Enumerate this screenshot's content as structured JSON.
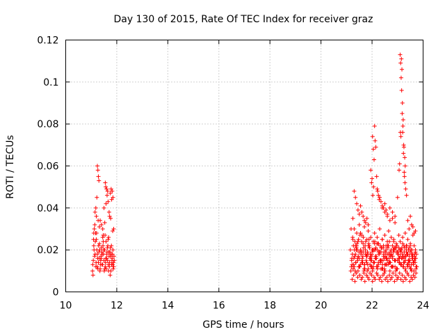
{
  "chart_data": {
    "type": "scatter",
    "title": "Day 130 of 2015, Rate Of TEC Index for receiver graz",
    "xlabel": "GPS time / hours",
    "ylabel": "ROTI / TECUs",
    "xlim": [
      10,
      24
    ],
    "ylim": [
      0,
      0.12
    ],
    "xticks": [
      10,
      12,
      14,
      16,
      18,
      20,
      22,
      24
    ],
    "yticks": [
      0,
      0.02,
      0.04,
      0.06,
      0.08,
      0.1,
      0.12
    ],
    "ytick_labels": [
      "0",
      "0.02",
      "0.04",
      "0.06",
      "0.08",
      "0.1",
      "0.12"
    ],
    "grid": true,
    "marker": "+",
    "color": "#ff0000",
    "series": [
      {
        "name": "ROTI",
        "x": [
          11.05,
          11.08,
          11.1,
          11.12,
          11.15,
          11.18,
          11.2,
          11.22,
          11.25,
          11.28,
          11.3,
          11.32,
          11.35,
          11.38,
          11.4,
          11.42,
          11.45,
          11.48,
          11.5,
          11.52,
          11.55,
          11.58,
          11.6,
          11.62,
          11.65,
          11.68,
          11.7,
          11.72,
          11.75,
          11.78,
          11.8,
          11.82,
          11.85,
          11.88,
          11.9,
          11.07,
          11.11,
          11.16,
          11.21,
          11.26,
          11.31,
          11.36,
          11.41,
          11.46,
          11.51,
          11.56,
          11.61,
          11.66,
          11.71,
          11.76,
          11.81,
          11.86,
          11.09,
          11.14,
          11.19,
          11.24,
          11.29,
          11.34,
          11.39,
          11.44,
          11.49,
          11.54,
          11.59,
          11.64,
          11.69,
          11.74,
          11.79,
          11.84,
          11.89,
          11.13,
          11.17,
          11.23,
          11.27,
          11.33,
          11.37,
          11.43,
          11.47,
          11.53,
          11.57,
          11.63,
          11.67,
          11.73,
          11.77,
          11.83,
          11.87,
          11.06,
          11.24,
          11.26,
          11.28,
          11.3,
          11.22,
          11.55,
          11.57,
          11.6,
          11.62,
          11.64,
          11.75,
          11.78,
          11.8,
          11.82,
          11.85,
          11.5,
          11.15,
          11.18,
          11.2,
          11.35,
          11.4,
          11.45,
          11.7,
          11.72,
          11.88,
          11.58,
          11.66,
          11.1,
          11.32,
          11.47,
          11.53,
          11.68,
          11.76,
          11.84,
          21.15,
          21.2,
          21.25,
          21.3,
          21.35,
          21.4,
          21.45,
          21.5,
          21.55,
          21.6,
          21.65,
          21.7,
          21.75,
          21.8,
          21.85,
          21.9,
          21.95,
          22.0,
          22.05,
          22.1,
          22.15,
          22.2,
          22.25,
          22.3,
          22.35,
          22.4,
          22.45,
          22.5,
          22.55,
          22.6,
          22.65,
          22.7,
          22.75,
          22.8,
          22.85,
          22.9,
          22.95,
          23.0,
          23.05,
          23.1,
          23.15,
          23.2,
          23.25,
          23.3,
          23.35,
          23.4,
          23.45,
          23.5,
          23.55,
          23.6,
          23.65,
          23.7,
          23.75,
          21.17,
          21.22,
          21.27,
          21.32,
          21.37,
          21.42,
          21.47,
          21.52,
          21.57,
          21.62,
          21.67,
          21.72,
          21.77,
          21.82,
          21.87,
          21.92,
          21.97,
          22.02,
          22.07,
          22.12,
          22.17,
          22.22,
          22.27,
          22.32,
          22.37,
          22.42,
          22.47,
          22.52,
          22.57,
          22.62,
          22.67,
          22.72,
          22.77,
          22.82,
          22.87,
          22.92,
          22.97,
          23.02,
          23.07,
          23.12,
          23.17,
          23.22,
          23.27,
          23.32,
          23.37,
          23.42,
          23.47,
          23.52,
          23.57,
          23.62,
          23.67,
          23.72,
          21.18,
          21.23,
          21.28,
          21.33,
          21.38,
          21.43,
          21.48,
          21.53,
          21.58,
          21.63,
          21.68,
          21.73,
          21.78,
          21.83,
          21.88,
          21.93,
          21.98,
          22.03,
          22.08,
          22.13,
          22.18,
          22.23,
          22.28,
          22.33,
          22.38,
          22.43,
          22.48,
          22.53,
          22.58,
          22.63,
          22.68,
          22.73,
          22.78,
          22.83,
          22.88,
          22.93,
          22.98,
          23.03,
          23.08,
          23.13,
          23.18,
          23.23,
          23.28,
          23.33,
          23.38,
          23.43,
          23.48,
          23.53,
          23.58,
          23.63,
          23.68,
          23.73,
          21.21,
          21.26,
          21.31,
          21.36,
          21.41,
          21.46,
          21.51,
          21.56,
          21.61,
          21.66,
          21.71,
          21.76,
          21.81,
          21.86,
          21.91,
          21.96,
          22.01,
          22.06,
          22.11,
          22.16,
          22.21,
          22.26,
          22.31,
          22.36,
          22.41,
          22.46,
          22.51,
          22.56,
          22.61,
          22.66,
          22.71,
          22.76,
          22.81,
          22.86,
          22.91,
          22.96,
          23.01,
          23.06,
          23.11,
          23.16,
          23.21,
          23.26,
          23.31,
          23.36,
          23.41,
          23.46,
          23.51,
          23.56,
          23.61,
          23.66,
          23.71,
          21.19,
          21.24,
          21.29,
          21.34,
          21.39,
          21.44,
          21.49,
          21.54,
          21.59,
          21.64,
          21.69,
          21.74,
          21.79,
          21.84,
          21.89,
          21.94,
          21.99,
          22.04,
          22.09,
          22.14,
          22.19,
          22.24,
          22.29,
          22.34,
          22.39,
          22.44,
          22.49,
          22.54,
          22.59,
          22.64,
          22.69,
          22.74,
          22.79,
          22.84,
          22.89,
          22.94,
          22.99,
          23.04,
          23.09,
          23.14,
          23.19,
          23.24,
          23.29,
          23.34,
          23.39,
          23.44,
          23.49,
          23.54,
          23.59,
          23.64,
          23.69,
          23.74,
          21.25,
          21.3,
          21.35,
          21.4,
          21.45,
          21.5,
          21.55,
          21.6,
          21.65,
          21.7,
          21.75,
          21.8,
          21.85,
          21.9,
          21.95,
          22.0,
          22.05,
          22.1,
          22.15,
          22.2,
          22.25,
          22.3,
          22.35,
          22.4,
          22.45,
          22.5,
          22.55,
          22.6,
          22.65,
          22.7,
          22.75,
          22.8,
          22.85,
          22.9,
          22.95,
          23.0,
          23.05,
          23.1,
          23.15,
          23.2,
          23.25,
          23.3,
          23.35,
          23.4,
          23.45,
          23.5,
          23.55,
          23.6,
          23.65,
          23.7,
          21.22,
          21.28,
          21.33,
          21.38,
          21.44,
          21.52,
          21.58,
          21.62,
          21.68,
          21.72,
          21.78,
          21.83,
          21.88,
          21.92,
          21.98,
          22.02,
          22.08,
          22.12,
          22.18,
          22.22,
          22.28,
          22.33,
          22.38,
          22.43,
          22.48,
          22.52,
          22.58,
          22.62,
          22.68,
          22.73,
          22.78,
          22.82,
          22.88,
          22.93,
          22.98,
          23.02,
          23.08,
          23.13,
          23.18,
          23.22,
          23.28,
          23.33,
          23.38,
          23.42,
          23.48,
          23.53,
          23.58,
          23.62,
          23.68,
          23.72,
          22.1,
          22.12,
          22.15,
          22.02,
          22.05,
          22.08,
          21.95,
          22.0,
          22.06,
          22.03,
          21.98,
          22.18,
          22.2,
          22.22,
          22.25,
          22.28,
          22.3,
          22.35,
          22.4,
          22.45,
          22.5,
          22.55,
          22.6,
          22.7,
          22.8,
          22.9,
          23.0,
          23.1,
          23.12,
          23.14,
          23.16,
          23.18,
          23.2,
          23.22,
          23.24,
          23.15,
          23.17,
          23.19,
          23.21,
          23.23,
          23.25,
          23.28,
          23.3,
          23.08,
          23.06,
          23.26,
          23.13,
          23.11,
          23.27,
          23.29,
          23.32,
          23.35,
          21.3,
          21.35,
          21.4,
          21.45,
          21.5,
          21.55,
          21.6,
          21.65,
          21.7,
          21.75,
          21.8,
          21.85,
          22.4,
          22.5,
          22.6,
          22.7,
          22.8,
          22.9,
          23.4,
          23.5,
          23.6,
          23.7,
          23.45,
          23.55,
          23.65
        ],
        "y": [
          0.01,
          0.015,
          0.022,
          0.03,
          0.018,
          0.012,
          0.025,
          0.02,
          0.016,
          0.014,
          0.019,
          0.023,
          0.011,
          0.017,
          0.021,
          0.013,
          0.026,
          0.018,
          0.015,
          0.02,
          0.012,
          0.024,
          0.016,
          0.019,
          0.022,
          0.01,
          0.017,
          0.014,
          0.021,
          0.018,
          0.013,
          0.016,
          0.02,
          0.012,
          0.015,
          0.008,
          0.02,
          0.024,
          0.028,
          0.011,
          0.016,
          0.013,
          0.019,
          0.022,
          0.01,
          0.014,
          0.018,
          0.025,
          0.012,
          0.017,
          0.015,
          0.011,
          0.025,
          0.032,
          0.014,
          0.018,
          0.022,
          0.01,
          0.016,
          0.013,
          0.02,
          0.027,
          0.011,
          0.015,
          0.019,
          0.008,
          0.022,
          0.013,
          0.017,
          0.017,
          0.028,
          0.012,
          0.034,
          0.02,
          0.015,
          0.018,
          0.024,
          0.011,
          0.016,
          0.021,
          0.013,
          0.019,
          0.01,
          0.018,
          0.014,
          0.013,
          0.06,
          0.058,
          0.055,
          0.053,
          0.045,
          0.052,
          0.05,
          0.049,
          0.046,
          0.048,
          0.047,
          0.049,
          0.044,
          0.048,
          0.045,
          0.04,
          0.038,
          0.04,
          0.036,
          0.034,
          0.032,
          0.03,
          0.038,
          0.036,
          0.03,
          0.042,
          0.043,
          0.028,
          0.031,
          0.027,
          0.033,
          0.026,
          0.035,
          0.029,
          0.02,
          0.015,
          0.025,
          0.012,
          0.018,
          0.022,
          0.01,
          0.016,
          0.028,
          0.014,
          0.019,
          0.013,
          0.024,
          0.017,
          0.011,
          0.021,
          0.015,
          0.018,
          0.012,
          0.023,
          0.016,
          0.02,
          0.014,
          0.019,
          0.011,
          0.025,
          0.017,
          0.013,
          0.022,
          0.015,
          0.018,
          0.01,
          0.02,
          0.016,
          0.024,
          0.012,
          0.019,
          0.015,
          0.021,
          0.017,
          0.013,
          0.023,
          0.016,
          0.011,
          0.02,
          0.018,
          0.014,
          0.022,
          0.01,
          0.017,
          0.015,
          0.019,
          0.012,
          0.01,
          0.013,
          0.022,
          0.017,
          0.014,
          0.02,
          0.025,
          0.012,
          0.018,
          0.016,
          0.021,
          0.011,
          0.015,
          0.019,
          0.023,
          0.013,
          0.017,
          0.01,
          0.014,
          0.02,
          0.016,
          0.012,
          0.018,
          0.022,
          0.015,
          0.011,
          0.019,
          0.017,
          0.013,
          0.021,
          0.016,
          0.014,
          0.018,
          0.012,
          0.02,
          0.015,
          0.011,
          0.019,
          0.016,
          0.013,
          0.021,
          0.017,
          0.014,
          0.01,
          0.018,
          0.015,
          0.012,
          0.02,
          0.016,
          0.013,
          0.017,
          0.011,
          0.03,
          0.018,
          0.013,
          0.024,
          0.02,
          0.016,
          0.012,
          0.027,
          0.019,
          0.014,
          0.01,
          0.022,
          0.017,
          0.013,
          0.025,
          0.018,
          0.015,
          0.011,
          0.02,
          0.016,
          0.012,
          0.023,
          0.018,
          0.014,
          0.021,
          0.015,
          0.011,
          0.019,
          0.016,
          0.013,
          0.024,
          0.017,
          0.012,
          0.02,
          0.015,
          0.01,
          0.022,
          0.018,
          0.014,
          0.019,
          0.016,
          0.012,
          0.021,
          0.017,
          0.013,
          0.02,
          0.015,
          0.011,
          0.018,
          0.014,
          0.016,
          0.012,
          0.016,
          0.011,
          0.02,
          0.014,
          0.023,
          0.017,
          0.012,
          0.019,
          0.015,
          0.026,
          0.013,
          0.018,
          0.01,
          0.022,
          0.016,
          0.012,
          0.02,
          0.014,
          0.024,
          0.017,
          0.011,
          0.019,
          0.015,
          0.021,
          0.013,
          0.018,
          0.01,
          0.016,
          0.022,
          0.014,
          0.019,
          0.012,
          0.017,
          0.021,
          0.015,
          0.011,
          0.018,
          0.014,
          0.02,
          0.016,
          0.012,
          0.019,
          0.015,
          0.022,
          0.013,
          0.017,
          0.011,
          0.02,
          0.014,
          0.018,
          0.016,
          0.012,
          0.026,
          0.016,
          0.01,
          0.021,
          0.015,
          0.019,
          0.013,
          0.024,
          0.017,
          0.011,
          0.02,
          0.014,
          0.018,
          0.022,
          0.016,
          0.012,
          0.02,
          0.014,
          0.017,
          0.023,
          0.013,
          0.019,
          0.015,
          0.011,
          0.021,
          0.016,
          0.013,
          0.018,
          0.022,
          0.014,
          0.017,
          0.012,
          0.019,
          0.015,
          0.021,
          0.011,
          0.016,
          0.02,
          0.013,
          0.018,
          0.014,
          0.017,
          0.022,
          0.012,
          0.015,
          0.019,
          0.013,
          0.016,
          0.01,
          0.014,
          0.018,
          0.035,
          0.03,
          0.022,
          0.028,
          0.024,
          0.032,
          0.02,
          0.027,
          0.023,
          0.031,
          0.018,
          0.025,
          0.029,
          0.021,
          0.026,
          0.019,
          0.024,
          0.028,
          0.021,
          0.026,
          0.023,
          0.03,
          0.019,
          0.025,
          0.022,
          0.027,
          0.02,
          0.024,
          0.029,
          0.018,
          0.026,
          0.022,
          0.025,
          0.021,
          0.023,
          0.019,
          0.027,
          0.024,
          0.02,
          0.026,
          0.022,
          0.028,
          0.019,
          0.025,
          0.021,
          0.023,
          0.018,
          0.027,
          0.022,
          0.02,
          0.006,
          0.008,
          0.005,
          0.009,
          0.007,
          0.008,
          0.006,
          0.007,
          0.009,
          0.005,
          0.008,
          0.007,
          0.006,
          0.009,
          0.008,
          0.005,
          0.007,
          0.006,
          0.009,
          0.008,
          0.006,
          0.007,
          0.005,
          0.008,
          0.009,
          0.006,
          0.007,
          0.005,
          0.008,
          0.006,
          0.007,
          0.009,
          0.005,
          0.008,
          0.006,
          0.007,
          0.009,
          0.006,
          0.008,
          0.005,
          0.007,
          0.006,
          0.009,
          0.008,
          0.005,
          0.007,
          0.006,
          0.008,
          0.007,
          0.009,
          0.079,
          0.072,
          0.069,
          0.074,
          0.068,
          0.063,
          0.058,
          0.054,
          0.05,
          0.046,
          0.052,
          0.055,
          0.049,
          0.048,
          0.046,
          0.044,
          0.045,
          0.043,
          0.041,
          0.04,
          0.042,
          0.039,
          0.037,
          0.04,
          0.038,
          0.036,
          0.045,
          0.113,
          0.109,
          0.102,
          0.096,
          0.085,
          0.076,
          0.082,
          0.07,
          0.111,
          0.106,
          0.09,
          0.079,
          0.066,
          0.069,
          0.064,
          0.06,
          0.061,
          0.058,
          0.057,
          0.074,
          0.076,
          0.055,
          0.052,
          0.049,
          0.046,
          0.048,
          0.045,
          0.042,
          0.039,
          0.037,
          0.041,
          0.038,
          0.036,
          0.034,
          0.033,
          0.035,
          0.032,
          0.04,
          0.038,
          0.036,
          0.034,
          0.035,
          0.033,
          0.034,
          0.036,
          0.031,
          0.029,
          0.03,
          0.032,
          0.028
        ]
      }
    ]
  }
}
